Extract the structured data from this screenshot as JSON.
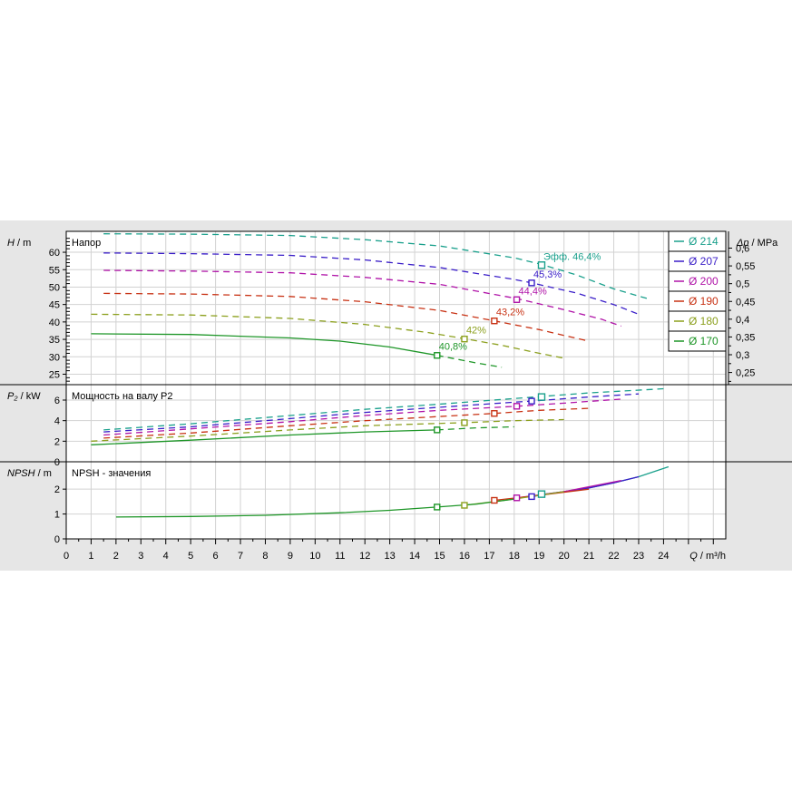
{
  "chart_data": {
    "type": "line",
    "x_axis": {
      "label_symbol": "Q",
      "label_unit": " / m³/h",
      "range": [
        0,
        26.5
      ],
      "ticks": [
        "0",
        "1",
        "2",
        "3",
        "4",
        "5",
        "6",
        "7",
        "8",
        "9",
        "10",
        "11",
        "12",
        "13",
        "14",
        "15",
        "16",
        "17",
        "18",
        "19",
        "20",
        "21",
        "22",
        "23",
        "24"
      ]
    },
    "panels": {
      "head": {
        "title": "Напор",
        "ylabel_symbol": "H",
        "ylabel_unit": " / m",
        "ylim": [
          22,
          66
        ],
        "yticks": [
          25,
          30,
          35,
          40,
          45,
          50,
          55,
          60
        ],
        "ytick_labels": [
          "25",
          "30",
          "35",
          "40",
          "45",
          "50",
          "55",
          "60"
        ],
        "right_label_symbol": "Δp",
        "right_label_unit": " / MPa",
        "right_ticks": [
          0.25,
          0.3,
          0.35,
          0.4,
          0.45,
          0.5,
          0.55,
          0.6
        ],
        "right_tick_labels": [
          "0,25",
          "0,3",
          "0,35",
          "0,4",
          "0,45",
          "0,5",
          "0,55",
          "0,6"
        ]
      },
      "power": {
        "title": "Мощность на валу P2",
        "ylabel_symbol": "P₂",
        "ylabel_unit": " / kW",
        "ylim": [
          0,
          7.5
        ],
        "yticks": [
          0,
          2,
          4,
          6
        ],
        "ytick_labels": [
          "0",
          "2",
          "4",
          "6"
        ]
      },
      "npsh": {
        "title": "NPSH - значения",
        "ylabel_symbol": "NPSH",
        "ylabel_unit": " / m",
        "ylim": [
          0,
          3.1
        ],
        "yticks": [
          0,
          1,
          2
        ],
        "ytick_labels": [
          "0",
          "1",
          "2"
        ]
      }
    },
    "series": [
      {
        "name": "Ø 214",
        "color": "#1aa08c",
        "head": [
          [
            1.5,
            65.3
          ],
          [
            5,
            65.2
          ],
          [
            9,
            64.8
          ],
          [
            12,
            63.6
          ],
          [
            15,
            61.8
          ],
          [
            18,
            58.4
          ],
          [
            19.1,
            56.5
          ],
          [
            20.5,
            53.5
          ],
          [
            22,
            49.5
          ],
          [
            23.4,
            46.6
          ]
        ],
        "power": [
          [
            1.5,
            3.1
          ],
          [
            5,
            3.7
          ],
          [
            9,
            4.5
          ],
          [
            12,
            5.1
          ],
          [
            15,
            5.6
          ],
          [
            18,
            6.15
          ],
          [
            19.1,
            6.35
          ],
          [
            21,
            6.7
          ],
          [
            24,
            7.1
          ]
        ],
        "npsh": [
          [
            19.1,
            1.78
          ],
          [
            20,
            1.9
          ],
          [
            21,
            2.05
          ],
          [
            22,
            2.25
          ],
          [
            23,
            2.5
          ],
          [
            24.2,
            2.9
          ]
        ],
        "bep": {
          "q": 19.1,
          "head": 56.3,
          "power": 6.3,
          "npsh": 1.8,
          "label": "Эфф.  46,4%"
        }
      },
      {
        "name": "Ø 207",
        "color": "#3a1ec8",
        "head": [
          [
            1.5,
            59.8
          ],
          [
            5,
            59.6
          ],
          [
            9,
            59.1
          ],
          [
            12,
            57.8
          ],
          [
            15,
            55.6
          ],
          [
            18,
            52.2
          ],
          [
            18.7,
            51.2
          ],
          [
            20.5,
            48.3
          ],
          [
            22,
            45
          ],
          [
            23,
            42.2
          ]
        ],
        "power": [
          [
            1.5,
            2.9
          ],
          [
            5,
            3.4
          ],
          [
            9,
            4.2
          ],
          [
            12,
            4.8
          ],
          [
            15,
            5.3
          ],
          [
            18,
            5.8
          ],
          [
            18.7,
            5.9
          ],
          [
            21,
            6.3
          ],
          [
            23,
            6.6
          ]
        ],
        "npsh": [
          [
            18.7,
            1.7
          ],
          [
            20,
            1.9
          ],
          [
            21,
            2.05
          ],
          [
            22,
            2.25
          ],
          [
            23,
            2.5
          ]
        ],
        "bep": {
          "q": 18.7,
          "head": 51.2,
          "power": 5.9,
          "npsh": 1.7,
          "label": "45,3%"
        }
      },
      {
        "name": "Ø 200",
        "color": "#b014a8",
        "head": [
          [
            1.5,
            54.8
          ],
          [
            5,
            54.6
          ],
          [
            9,
            54.1
          ],
          [
            12,
            52.8
          ],
          [
            15,
            50.8
          ],
          [
            18.1,
            46.7
          ],
          [
            20,
            43.5
          ],
          [
            21.5,
            40.8
          ],
          [
            22.3,
            38.8
          ]
        ],
        "power": [
          [
            1.5,
            2.6
          ],
          [
            5,
            3.2
          ],
          [
            9,
            3.9
          ],
          [
            12,
            4.5
          ],
          [
            15,
            5
          ],
          [
            18.1,
            5.4
          ],
          [
            20,
            5.7
          ],
          [
            22.3,
            6.1
          ]
        ],
        "npsh": [
          [
            18.1,
            1.65
          ],
          [
            20,
            1.9
          ],
          [
            22.3,
            2.35
          ]
        ],
        "bep": {
          "q": 18.1,
          "head": 46.4,
          "power": 5.4,
          "npsh": 1.65,
          "label": "44,4%"
        }
      },
      {
        "name": "Ø 190",
        "color": "#c83214",
        "head": [
          [
            1.5,
            48.2
          ],
          [
            5,
            48
          ],
          [
            9,
            47.3
          ],
          [
            12,
            45.8
          ],
          [
            15,
            43.3
          ],
          [
            17.2,
            40.3
          ],
          [
            19,
            37.8
          ],
          [
            20.2,
            35.8
          ],
          [
            21,
            34.5
          ]
        ],
        "power": [
          [
            1.5,
            2.3
          ],
          [
            5,
            2.8
          ],
          [
            9,
            3.5
          ],
          [
            12,
            4
          ],
          [
            15,
            4.4
          ],
          [
            17.2,
            4.7
          ],
          [
            19,
            5
          ],
          [
            21,
            5.2
          ]
        ],
        "npsh": [
          [
            17.2,
            1.55
          ],
          [
            19,
            1.75
          ],
          [
            21,
            2
          ]
        ],
        "bep": {
          "q": 17.2,
          "head": 40.3,
          "power": 4.7,
          "npsh": 1.55,
          "label": "43,2%"
        }
      },
      {
        "name": "Ø 180",
        "color": "#8ca01e",
        "head": [
          [
            1,
            42.2
          ],
          [
            5,
            42
          ],
          [
            9,
            41
          ],
          [
            12,
            39.3
          ],
          [
            14.5,
            37
          ],
          [
            16,
            35.2
          ],
          [
            17.5,
            33.3
          ],
          [
            19,
            31
          ],
          [
            20,
            29.6
          ]
        ],
        "power": [
          [
            1,
            2
          ],
          [
            5,
            2.5
          ],
          [
            9,
            3.1
          ],
          [
            12,
            3.5
          ],
          [
            14.5,
            3.7
          ],
          [
            16,
            3.8
          ],
          [
            18,
            4
          ],
          [
            20,
            4.1
          ]
        ],
        "npsh": [
          [
            16,
            1.35
          ],
          [
            18,
            1.6
          ],
          [
            20,
            1.9
          ]
        ],
        "bep": {
          "q": 16,
          "head": 35.1,
          "power": 3.8,
          "npsh": 1.35,
          "label": "42%"
        }
      },
      {
        "name": "Ø 170",
        "color": "#1e9628",
        "head": [
          [
            1,
            36.6
          ],
          [
            5,
            36.4
          ],
          [
            9,
            35.4
          ],
          [
            11,
            34.5
          ],
          [
            13,
            32.8
          ],
          [
            14.9,
            30.4
          ],
          [
            16.5,
            28.2
          ],
          [
            17.5,
            27
          ]
        ],
        "power": [
          [
            1,
            1.65
          ],
          [
            5,
            2.1
          ],
          [
            9,
            2.6
          ],
          [
            12,
            2.9
          ],
          [
            14.9,
            3.1
          ],
          [
            16.5,
            3.3
          ],
          [
            18,
            3.4
          ]
        ],
        "npsh": [
          [
            2,
            0.88
          ],
          [
            5,
            0.9
          ],
          [
            8,
            0.95
          ],
          [
            11,
            1.05
          ],
          [
            13,
            1.15
          ],
          [
            14.9,
            1.28
          ],
          [
            16.5,
            1.4
          ],
          [
            18,
            1.6
          ]
        ],
        "bep": {
          "q": 14.9,
          "head": 30.4,
          "power": 3.1,
          "npsh": 1.28,
          "label": "40,8%"
        }
      }
    ]
  }
}
